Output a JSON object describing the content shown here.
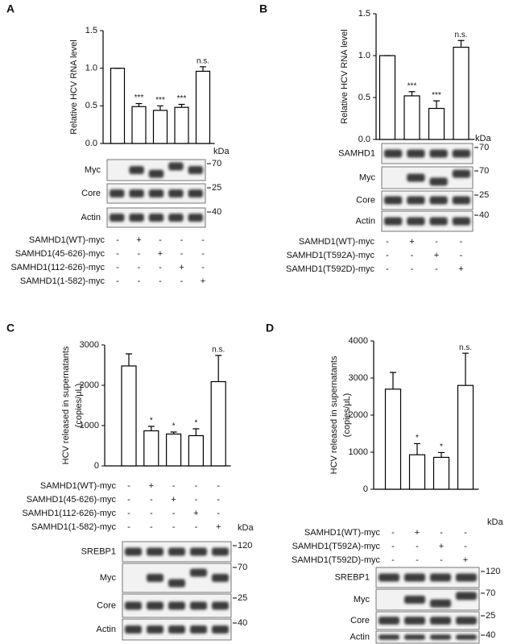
{
  "chart_data": [
    {
      "type": "bar",
      "panel": "A",
      "ylabel": [
        "Relative HCV RNA level"
      ],
      "values": [
        1.0,
        0.49,
        0.44,
        0.48,
        0.96
      ],
      "errors": [
        0,
        0.04,
        0.06,
        0.04,
        0.06
      ],
      "annotations": [
        null,
        "***",
        "***",
        "***",
        "n.s."
      ],
      "color": "#ffffff",
      "ylim": [
        0,
        1.5
      ],
      "yticks": [
        {
          "value": 0,
          "label": "0.0"
        },
        0.5,
        {
          "value": 1,
          "label": "1.0"
        },
        1.5
      ],
      "conditions": [
        {
          "label": "SAMHD1(WT)-myc",
          "signs": [
            "-",
            "+",
            "-",
            "-",
            "-"
          ]
        },
        {
          "label": "SAMHD1(45-626)-myc",
          "signs": [
            "-",
            "-",
            "+",
            "-",
            "-"
          ]
        },
        {
          "label": "SAMHD1(112-626)-myc",
          "signs": [
            "-",
            "-",
            "-",
            "+",
            "-"
          ]
        },
        {
          "label": "SAMHD1(1-582)-myc",
          "signs": [
            "-",
            "-",
            "-",
            "-",
            "+"
          ]
        }
      ],
      "blots": {
        "unit": "kDa",
        "rows": [
          {
            "label": "Myc",
            "marker": 70
          },
          {
            "label": "Core",
            "marker": 25
          },
          {
            "label": "Actin",
            "marker": 40
          }
        ]
      }
    },
    {
      "type": "bar",
      "panel": "B",
      "ylabel": [
        "Relative HCV RNA level"
      ],
      "values": [
        1.0,
        0.52,
        0.37,
        1.1
      ],
      "errors": [
        0,
        0.05,
        0.09,
        0.08
      ],
      "annotations": [
        null,
        "***",
        "***",
        "n.s."
      ],
      "color": "#ffffff",
      "ylim": [
        0,
        1.5
      ],
      "yticks": [
        {
          "value": 0,
          "label": "0.0"
        },
        0.5,
        {
          "value": 1,
          "label": "1.0"
        },
        1.5
      ],
      "conditions": [
        {
          "label": "SAMHD1(WT)-myc",
          "signs": [
            "-",
            "+",
            "-",
            "-"
          ]
        },
        {
          "label": "SAMHD1(T592A)-myc",
          "signs": [
            "-",
            "-",
            "+",
            "-"
          ]
        },
        {
          "label": "SAMHD1(T592D)-myc",
          "signs": [
            "-",
            "-",
            "-",
            "+"
          ]
        }
      ],
      "blots": {
        "unit": "kDa",
        "rows": [
          {
            "label": "SAMHD1",
            "marker": 70
          },
          {
            "label": "Myc",
            "marker": 70
          },
          {
            "label": "Core",
            "marker": 25
          },
          {
            "label": "Actin",
            "marker": 40
          }
        ]
      }
    },
    {
      "type": "bar",
      "panel": "C",
      "ylabel": [
        "HCV released in supernatants",
        "(copies/μL)"
      ],
      "values": [
        2480,
        870,
        790,
        750,
        2090
      ],
      "errors": [
        300,
        110,
        50,
        170,
        650
      ],
      "annotations": [
        null,
        "*",
        "*",
        "*",
        "n.s."
      ],
      "color": "#ffffff",
      "ylim": [
        0,
        3000
      ],
      "yticks": [
        0,
        1000,
        2000,
        3000
      ],
      "conditions": [
        {
          "label": "SAMHD1(WT)-myc",
          "signs": [
            "-",
            "+",
            "-",
            "-",
            "-"
          ]
        },
        {
          "label": "SAMHD1(45-626)-myc",
          "signs": [
            "-",
            "-",
            "+",
            "-",
            "-"
          ]
        },
        {
          "label": "SAMHD1(112-626)-myc",
          "signs": [
            "-",
            "-",
            "-",
            "+",
            "-"
          ]
        },
        {
          "label": "SAMHD1(1-582)-myc",
          "signs": [
            "-",
            "-",
            "-",
            "-",
            "+"
          ]
        }
      ],
      "blots": {
        "unit": "kDa",
        "rows": [
          {
            "label": "SREBP1",
            "marker": 120
          },
          {
            "label": "Myc",
            "marker": 70
          },
          {
            "label": "Core",
            "marker": 25
          },
          {
            "label": "Actin",
            "marker": 40
          }
        ]
      }
    },
    {
      "type": "bar",
      "panel": "D",
      "ylabel": [
        "HCV released in supernatants",
        "(copies/μL)"
      ],
      "values": [
        2700,
        930,
        860,
        2800
      ],
      "errors": [
        450,
        300,
        130,
        870
      ],
      "annotations": [
        null,
        "*",
        "*",
        "n.s."
      ],
      "color": "#ffffff",
      "ylim": [
        0,
        4000
      ],
      "yticks": [
        0,
        1000,
        2000,
        3000,
        4000
      ],
      "conditions": [
        {
          "label": "SAMHD1(WT)-myc",
          "signs": [
            "-",
            "+",
            "-",
            "-"
          ]
        },
        {
          "label": "SAMHD1(T592A)-myc",
          "signs": [
            "-",
            "-",
            "+",
            "-"
          ]
        },
        {
          "label": "SAMHD1(T592D)-myc",
          "signs": [
            "-",
            "-",
            "-",
            "+"
          ]
        }
      ],
      "blots": {
        "unit": "kDa",
        "rows": [
          {
            "label": "SREBP1",
            "marker": 120
          },
          {
            "label": "Myc",
            "marker": 70
          },
          {
            "label": "Core",
            "marker": 25
          },
          {
            "label": "Actin",
            "marker": 40
          }
        ]
      }
    }
  ]
}
